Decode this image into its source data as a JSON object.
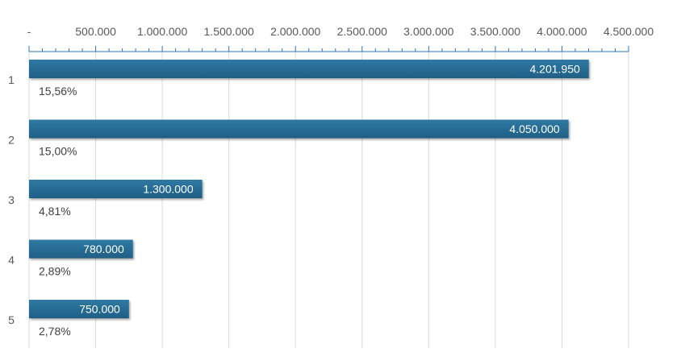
{
  "chart_data": {
    "type": "bar",
    "orientation": "horizontal",
    "categories": [
      "1",
      "2",
      "3",
      "4",
      "5"
    ],
    "values": [
      4201950,
      4050000,
      1300000,
      780000,
      750000
    ],
    "value_labels": [
      "4.201.950",
      "4.050.000",
      "1.300.000",
      "780.000",
      "750.000"
    ],
    "percent_labels": [
      "15,56%",
      "15,00%",
      "4,81%",
      "2,89%",
      "2,78%"
    ],
    "xlim": [
      0,
      4500000
    ],
    "x_ticks": [
      0,
      500000,
      1000000,
      1500000,
      2000000,
      2500000,
      3000000,
      3500000,
      4000000,
      4500000
    ],
    "x_tick_labels": [
      "-",
      "500.000",
      "1.000.000",
      "1.500.000",
      "2.000.000",
      "2.500.000",
      "3.000.000",
      "3.500.000",
      "4.000.000",
      "4.500.000"
    ],
    "x_axis_position": "top",
    "grid": true,
    "bar_color": "#1f5f85",
    "bar_color_light": "#2f79a3",
    "grid_color": "#d9d9d9",
    "axis_color": "#2e75b6"
  }
}
